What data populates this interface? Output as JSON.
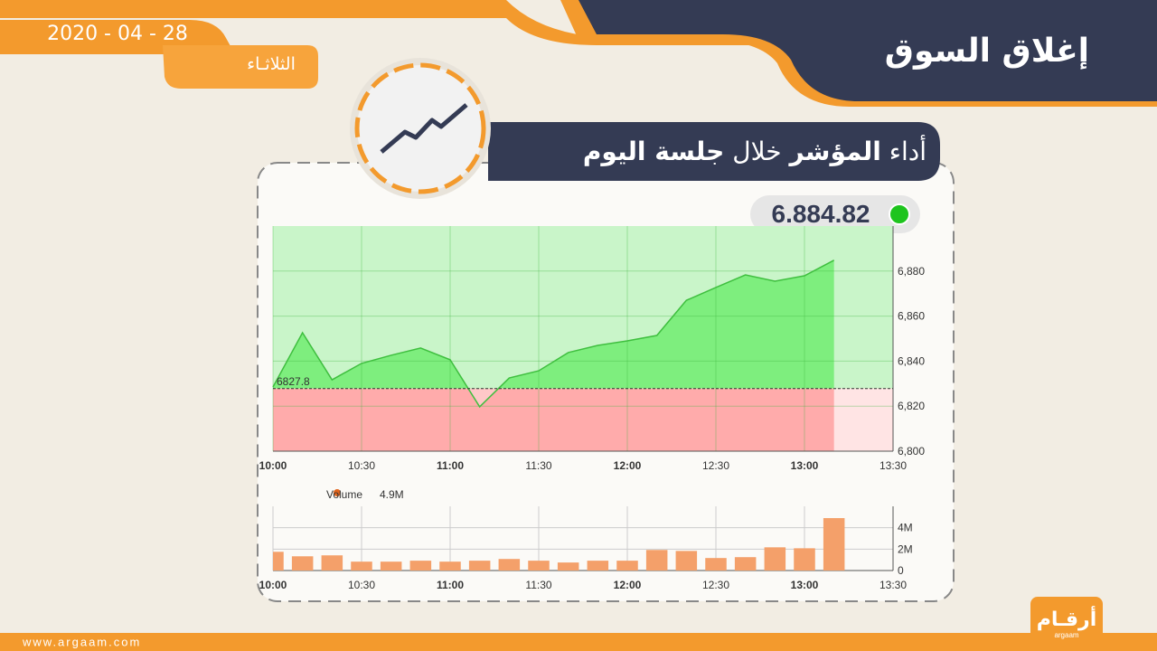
{
  "header": {
    "title": "إغلاق السوق",
    "date": "2020 - 04 - 28",
    "day": "الثلاثـاء",
    "subtitle": [
      "أداء",
      "المؤشر",
      "خلال",
      "جلسة اليوم"
    ],
    "close_value": "6.884.82",
    "website": "www.argaam.com",
    "logo": "أرقـام",
    "logo_latin": "argaam"
  },
  "chart_data": [
    {
      "type": "line",
      "x": [
        "10:00",
        "10:10",
        "10:20",
        "10:30",
        "10:40",
        "10:50",
        "11:00",
        "11:10",
        "11:20",
        "11:30",
        "11:40",
        "11:50",
        "12:00",
        "12:10",
        "12:20",
        "12:30",
        "12:40",
        "12:50",
        "13:00",
        "13:10"
      ],
      "values": [
        6828.5,
        6852.6,
        6831.7,
        6839,
        6842.6,
        6845.8,
        6840.6,
        6819.7,
        6832.5,
        6835.7,
        6843.8,
        6847,
        6849,
        6851.4,
        6867,
        6872.7,
        6878.3,
        6875.5,
        6877.9,
        6884.82
      ],
      "baseline": 6827.8,
      "color": "#3fbf3f",
      "xlim": [
        "10:00",
        "13:30"
      ],
      "xticks": [
        "10:00",
        "10:30",
        "11:00",
        "11:30",
        "12:00",
        "12:30",
        "13:00",
        "13:30"
      ],
      "ylim": [
        6800,
        6900
      ],
      "yticks": [
        {
          "value": 6800,
          "label": "6,800"
        },
        {
          "value": 6820,
          "label": "6,820"
        },
        {
          "value": 6840,
          "label": "6,840"
        },
        {
          "value": 6860,
          "label": "6,860"
        },
        {
          "value": 6880,
          "label": "6,880"
        }
      ],
      "grid": true
    },
    {
      "type": "bar",
      "series": [
        {
          "name": "Volume",
          "color": "#f4a06a",
          "values": [
            1750000,
            1330000,
            1420000,
            830000,
            830000,
            920000,
            830000,
            920000,
            1080000,
            920000,
            750000,
            920000,
            920000,
            1920000,
            1830000,
            1170000,
            1250000,
            2170000,
            2080000,
            4900000
          ]
        }
      ],
      "last_value_label": "4.9M",
      "x": [
        "10:00",
        "10:10",
        "10:20",
        "10:30",
        "10:40",
        "10:50",
        "11:00",
        "11:10",
        "11:20",
        "11:30",
        "11:40",
        "11:50",
        "12:00",
        "12:10",
        "12:20",
        "12:30",
        "12:40",
        "12:50",
        "13:00",
        "13:10"
      ],
      "xlim": [
        "10:00",
        "13:30"
      ],
      "xticks": [
        "10:00",
        "10:30",
        "11:00",
        "11:30",
        "12:00",
        "12:30",
        "13:00",
        "13:30"
      ],
      "ylim": [
        0,
        6000000
      ],
      "yticks": [
        0,
        {
          "value": 2000000,
          "label": "2M"
        },
        {
          "value": 4000000,
          "label": "4M"
        }
      ],
      "grid": true
    }
  ]
}
